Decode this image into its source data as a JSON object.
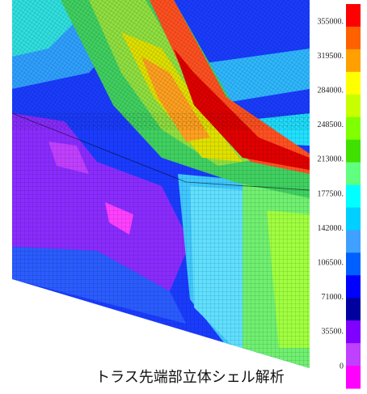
{
  "legend": {
    "labels": [
      "355000.",
      "319500.",
      "284000.",
      "248500.",
      "213000.",
      "177500.",
      "142000.",
      "106500.",
      "71000.",
      "35500.",
      "0"
    ]
  },
  "caption": "トラス先端部立体シェル解析"
}
